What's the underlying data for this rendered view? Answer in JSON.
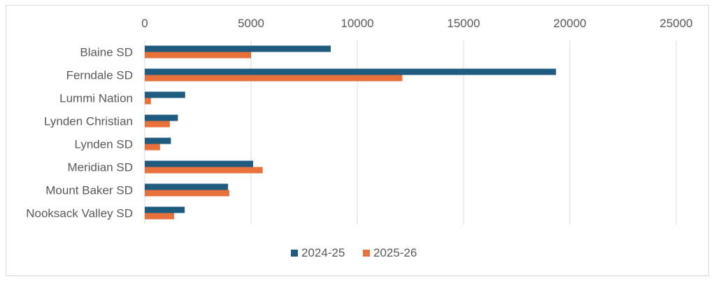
{
  "chart_data": {
    "type": "bar",
    "orientation": "horizontal",
    "categories": [
      "Blaine SD",
      "Ferndale SD",
      "Lummi Nation",
      "Lynden Christian",
      "Lynden SD",
      "Meridian SD",
      "Mount Baker SD",
      "Nooksack Valley SD"
    ],
    "series": [
      {
        "name": "2024-25",
        "color": "#1f5b7e",
        "values": [
          8750,
          19350,
          1900,
          1560,
          1230,
          5100,
          3920,
          1880
        ]
      },
      {
        "name": "2025-26",
        "color": "#e8703a",
        "values": [
          5000,
          12120,
          290,
          1180,
          720,
          5550,
          3980,
          1380
        ]
      }
    ],
    "xlim": [
      0,
      25000
    ],
    "xticks": [
      0,
      5000,
      10000,
      15000,
      20000,
      25000
    ],
    "x_axis_position": "top",
    "grid": "vertical",
    "legend": "bottom",
    "title": "",
    "xlabel": "",
    "ylabel": ""
  }
}
